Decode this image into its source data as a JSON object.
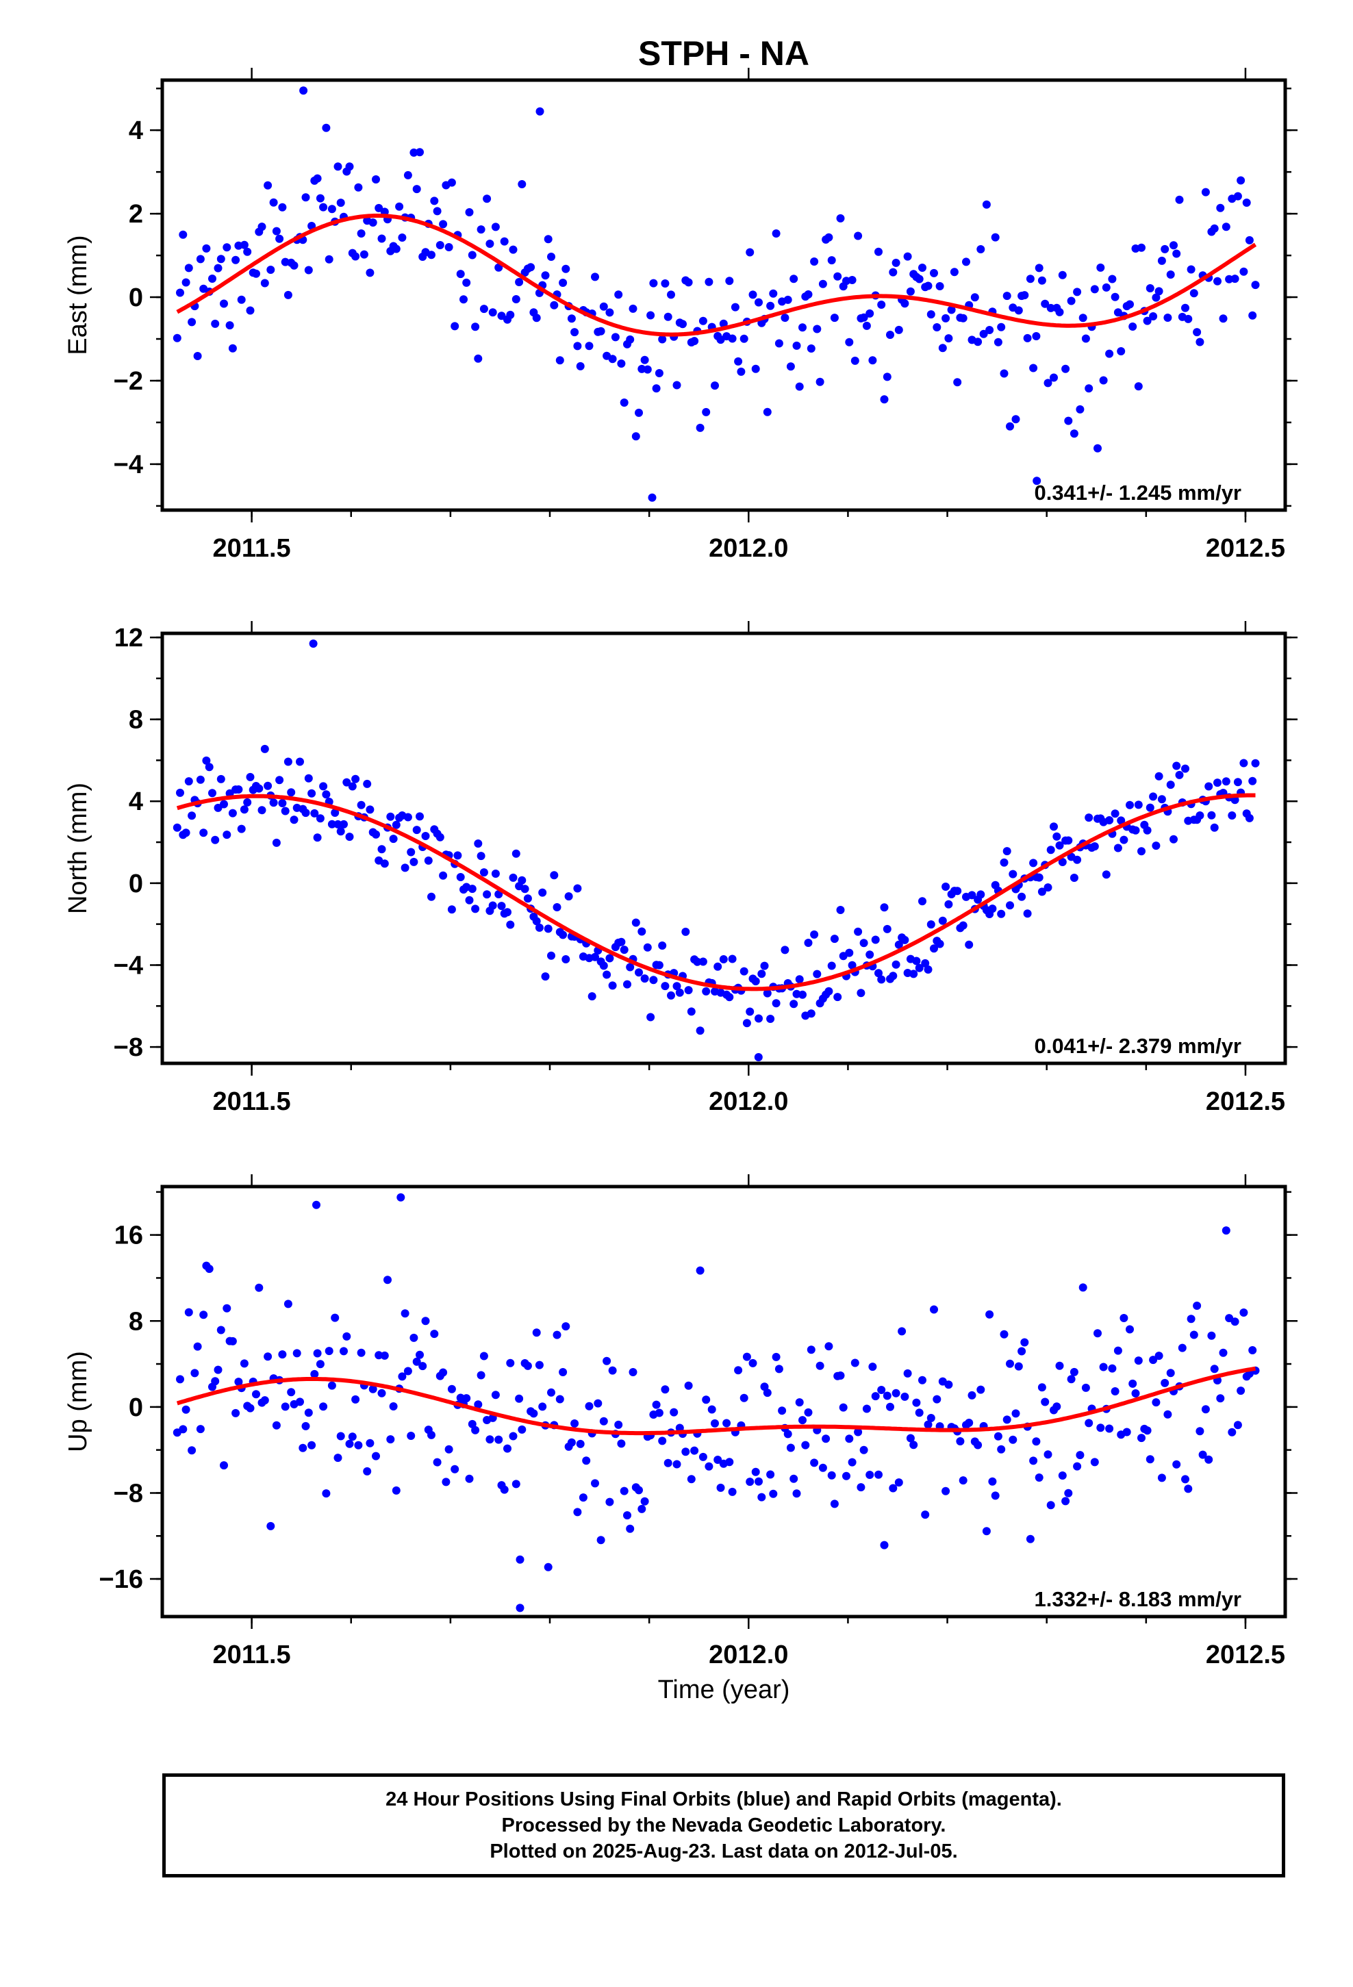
{
  "chart_data": {
    "type": "scatter",
    "title": "STPH - NA",
    "xlabel": "Time (year)",
    "xlim": [
      2011.41,
      2012.54
    ],
    "x_major_ticks": [
      2011.5,
      2012.0,
      2012.5
    ],
    "x_tick_labels": [
      "2011.5",
      "2012.0",
      "2012.5"
    ],
    "x_minor_step": 0.1,
    "x_start": 2011.425,
    "x_end": 2012.51,
    "point_color": "#0000ff",
    "fit_color": "#ff0000",
    "panels": [
      {
        "key": "east",
        "ylabel": "East (mm)",
        "ylim": [
          -5.1,
          5.2
        ],
        "yticks": [
          4,
          2,
          0,
          -2,
          -4
        ],
        "ytick_labels": [
          "4",
          "2",
          "0",
          "−2",
          "−4"
        ],
        "minor_ystep": 1,
        "rate_text": "0.341+/- 1.245 mm/yr",
        "fit_params": {
          "mean": 0.17,
          "trend": 0.341,
          "annual_amp": 1.05,
          "annual_phase_year": 2011.62,
          "semi_amp": 0.85,
          "semi_phase_year": 2011.626
        },
        "noise_sd": 0.95,
        "outliers": [
          [
            2011.552,
            4.95
          ],
          [
            2011.903,
            -4.8
          ],
          [
            2012.29,
            -4.4
          ],
          [
            2011.79,
            4.45
          ]
        ],
        "point_count": 370
      },
      {
        "key": "north",
        "ylabel": "North (mm)",
        "ylim": [
          -8.8,
          12.2
        ],
        "yticks": [
          12,
          8,
          4,
          0,
          -4,
          -8
        ],
        "ytick_labels": [
          "12",
          "8",
          "4",
          "0",
          "−4",
          "−8"
        ],
        "minor_ystep": 2,
        "rate_text": "0.041+/- 2.379 mm/yr",
        "fit_params": {
          "mean": -0.45,
          "trend": 0.041,
          "annual_amp": 4.72,
          "annual_phase_year": 2011.505,
          "semi_amp": 0.0,
          "semi_phase_year": 2011.5
        },
        "noise_sd": 1.0,
        "outliers": [
          [
            2011.562,
            11.7
          ],
          [
            2012.01,
            -8.5
          ]
        ],
        "point_count": 370
      },
      {
        "key": "up",
        "ylabel": "Up (mm)",
        "ylim": [
          -19.5,
          20.5
        ],
        "yticks": [
          16,
          8,
          0,
          -8,
          -16
        ],
        "ytick_labels": [
          "16",
          "8",
          "0",
          "−8",
          "−16"
        ],
        "minor_ystep": 4,
        "rate_text": "1.332+/- 8.183 mm/yr",
        "fit_params": {
          "mean": -0.55,
          "trend": 1.332,
          "annual_amp": 2.55,
          "annual_phase_year": 2011.56,
          "semi_amp": 1.15,
          "semi_phase_year": 2011.555
        },
        "noise_sd": 5.0,
        "outliers": [
          [
            2011.565,
            18.8
          ],
          [
            2011.65,
            19.5
          ],
          [
            2011.77,
            -18.7
          ],
          [
            2011.77,
            -14.2
          ]
        ],
        "point_count": 370
      }
    ]
  },
  "caption": {
    "line1": "24 Hour Positions Using Final Orbits (blue) and Rapid Orbits (magenta).",
    "line2": "Processed by the Nevada Geodetic Laboratory.",
    "line3": "Plotted on 2025-Aug-23. Last data on 2012-Jul-05."
  }
}
